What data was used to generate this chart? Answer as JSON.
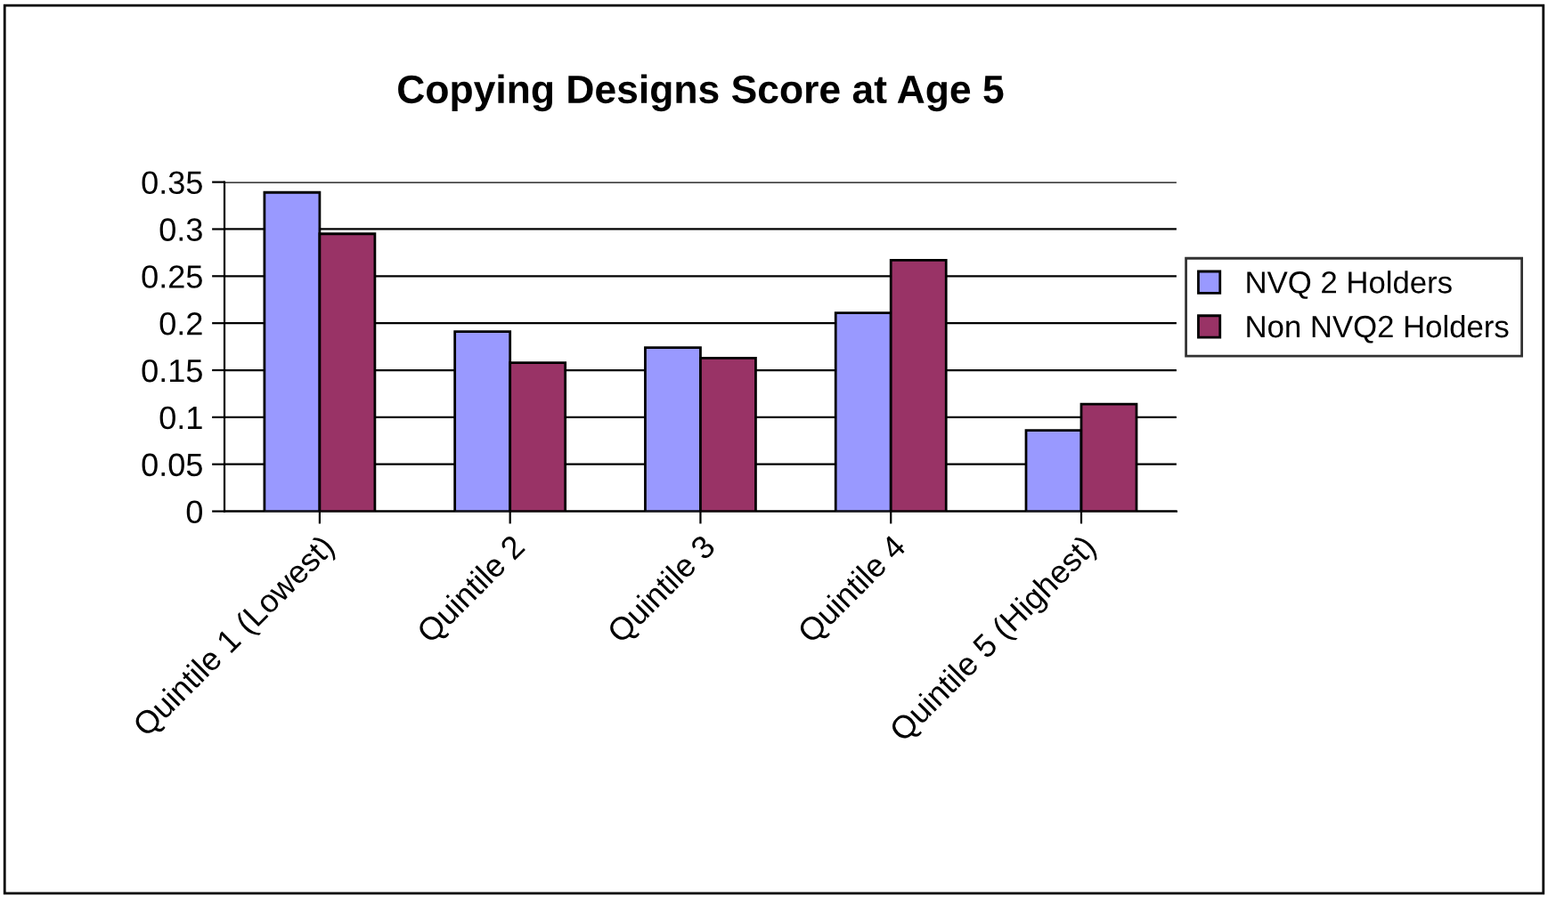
{
  "chart_data": {
    "type": "bar",
    "title": "Copying Designs Score at Age 5",
    "categories": [
      "Quintile 1 (Lowest)",
      "Quintile 2",
      "Quintile 3",
      "Quintile 4",
      "Quintile 5 (Highest)"
    ],
    "series": [
      {
        "name": "NVQ 2 Holders",
        "color": "#9999ff",
        "values": [
          0.339,
          0.191,
          0.174,
          0.211,
          0.086
        ]
      },
      {
        "name": "Non NVQ2 Holders",
        "color": "#993366",
        "values": [
          0.295,
          0.158,
          0.163,
          0.267,
          0.114
        ]
      }
    ],
    "ylim": [
      0,
      0.35
    ],
    "yticks": [
      0,
      0.05,
      0.1,
      0.15,
      0.2,
      0.25,
      0.3,
      0.35
    ],
    "grid": "y",
    "legend": "right"
  }
}
